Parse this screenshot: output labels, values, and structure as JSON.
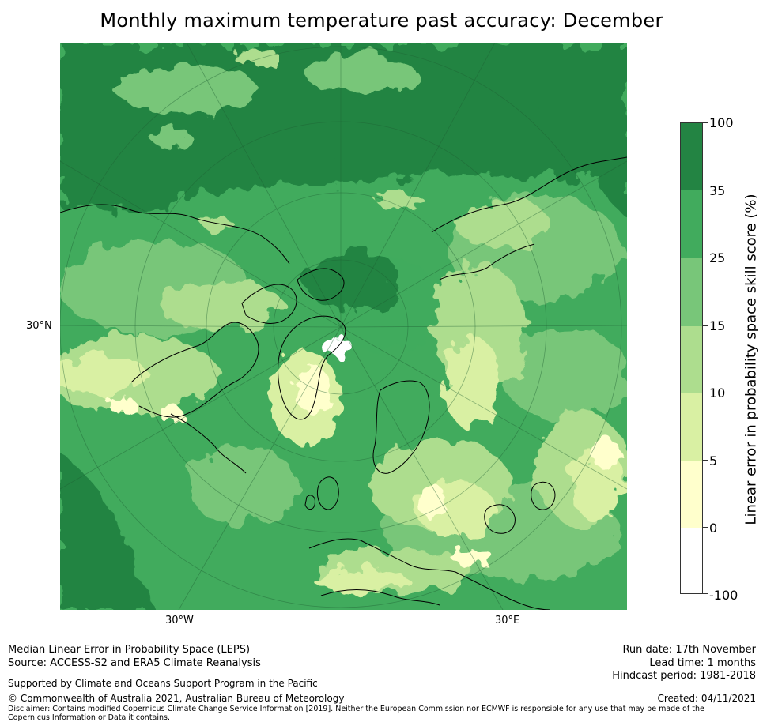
{
  "title": "Monthly maximum temperature past accuracy: December",
  "axes": {
    "lat_label": "30°N",
    "lon_left": "30°W",
    "lon_right": "30°E"
  },
  "colorbar": {
    "title": "Linear error in probability space skill score (%)",
    "ticks": [
      "100",
      "35",
      "25",
      "15",
      "10",
      "5",
      "0",
      "-100"
    ],
    "colors": [
      "#238443",
      "#41ab5d",
      "#78c679",
      "#addd8e",
      "#d9f0a3",
      "#ffffcc",
      "#ffffff"
    ]
  },
  "colors": {
    "darkest": "#238443",
    "dark": "#41ab5d",
    "mid": "#78c679",
    "light": "#addd8e",
    "pale": "#d9f0a3",
    "cream": "#ffffcc",
    "coast": "#000000"
  },
  "footer": {
    "line1": "Median Linear Error in Probability Space (LEPS)",
    "line2": "Source: ACCESS-S2 and ERA5 Climate Reanalysis",
    "support": "Supported by Climate and Oceans Support Program in the Pacific",
    "copyright": "© Commonwealth of Australia 2021, Australian Bureau of Meteorology",
    "disclaimer": "Disclaimer: Contains modified Copernicus Climate Change Service Information [2019]. Neither the European Commission nor ECMWF is responsible for any use that may be made of the Copernicus Information or Data it contains.",
    "run_date": "Run date: 17th November",
    "lead_time": "Lead time: 1 months",
    "hindcast": "Hindcast period: 1981-2018",
    "created": "Created: 04/11/2021"
  }
}
